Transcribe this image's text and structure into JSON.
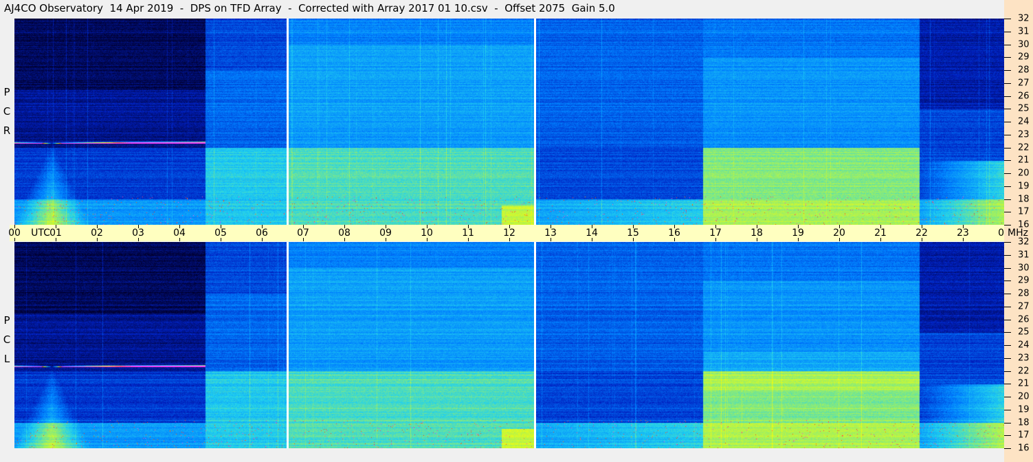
{
  "title": "AJ4CO Observatory  14 Apr 2019  -  DPS on TFD Array  -  Corrected with Array 2017 01 10.csv  -  Offset 2075  Gain 5.0",
  "chart_data": {
    "type": "heatmap",
    "title": "AJ4CO Observatory  14 Apr 2019  -  DPS on TFD Array  -  Corrected with Array 2017 01 10.csv  -  Offset 2075  Gain 5.0",
    "panels": [
      {
        "label": [
          "R",
          "C",
          "P"
        ]
      },
      {
        "label": [
          "L",
          "C",
          "P"
        ]
      }
    ],
    "x_axis": {
      "unit": "UTC",
      "range_hours": [
        0,
        24
      ],
      "ticks": [
        "00",
        "01",
        "02",
        "03",
        "04",
        "05",
        "06",
        "07",
        "08",
        "09",
        "10",
        "11",
        "12",
        "13",
        "14",
        "15",
        "16",
        "17",
        "18",
        "19",
        "20",
        "21",
        "22",
        "23",
        "00"
      ]
    },
    "y_axis": {
      "unit": "MHz",
      "range": [
        16,
        32
      ],
      "ticks": [
        "16",
        "17",
        "18",
        "19",
        "20",
        "21",
        "22",
        "23",
        "24",
        "25",
        "26",
        "27",
        "28",
        "29",
        "30",
        "31",
        "32"
      ]
    },
    "data_gaps_utc_hours": [
      6.63,
      12.63
    ],
    "colormap": [
      "#000030",
      "#0020c0",
      "#0080ff",
      "#20d0f0",
      "#a0f060",
      "#ffff00",
      "#ff4000",
      "#ff40ff"
    ]
  },
  "axis": {
    "utc_label": "UTC",
    "mhz_label": "MHz"
  }
}
